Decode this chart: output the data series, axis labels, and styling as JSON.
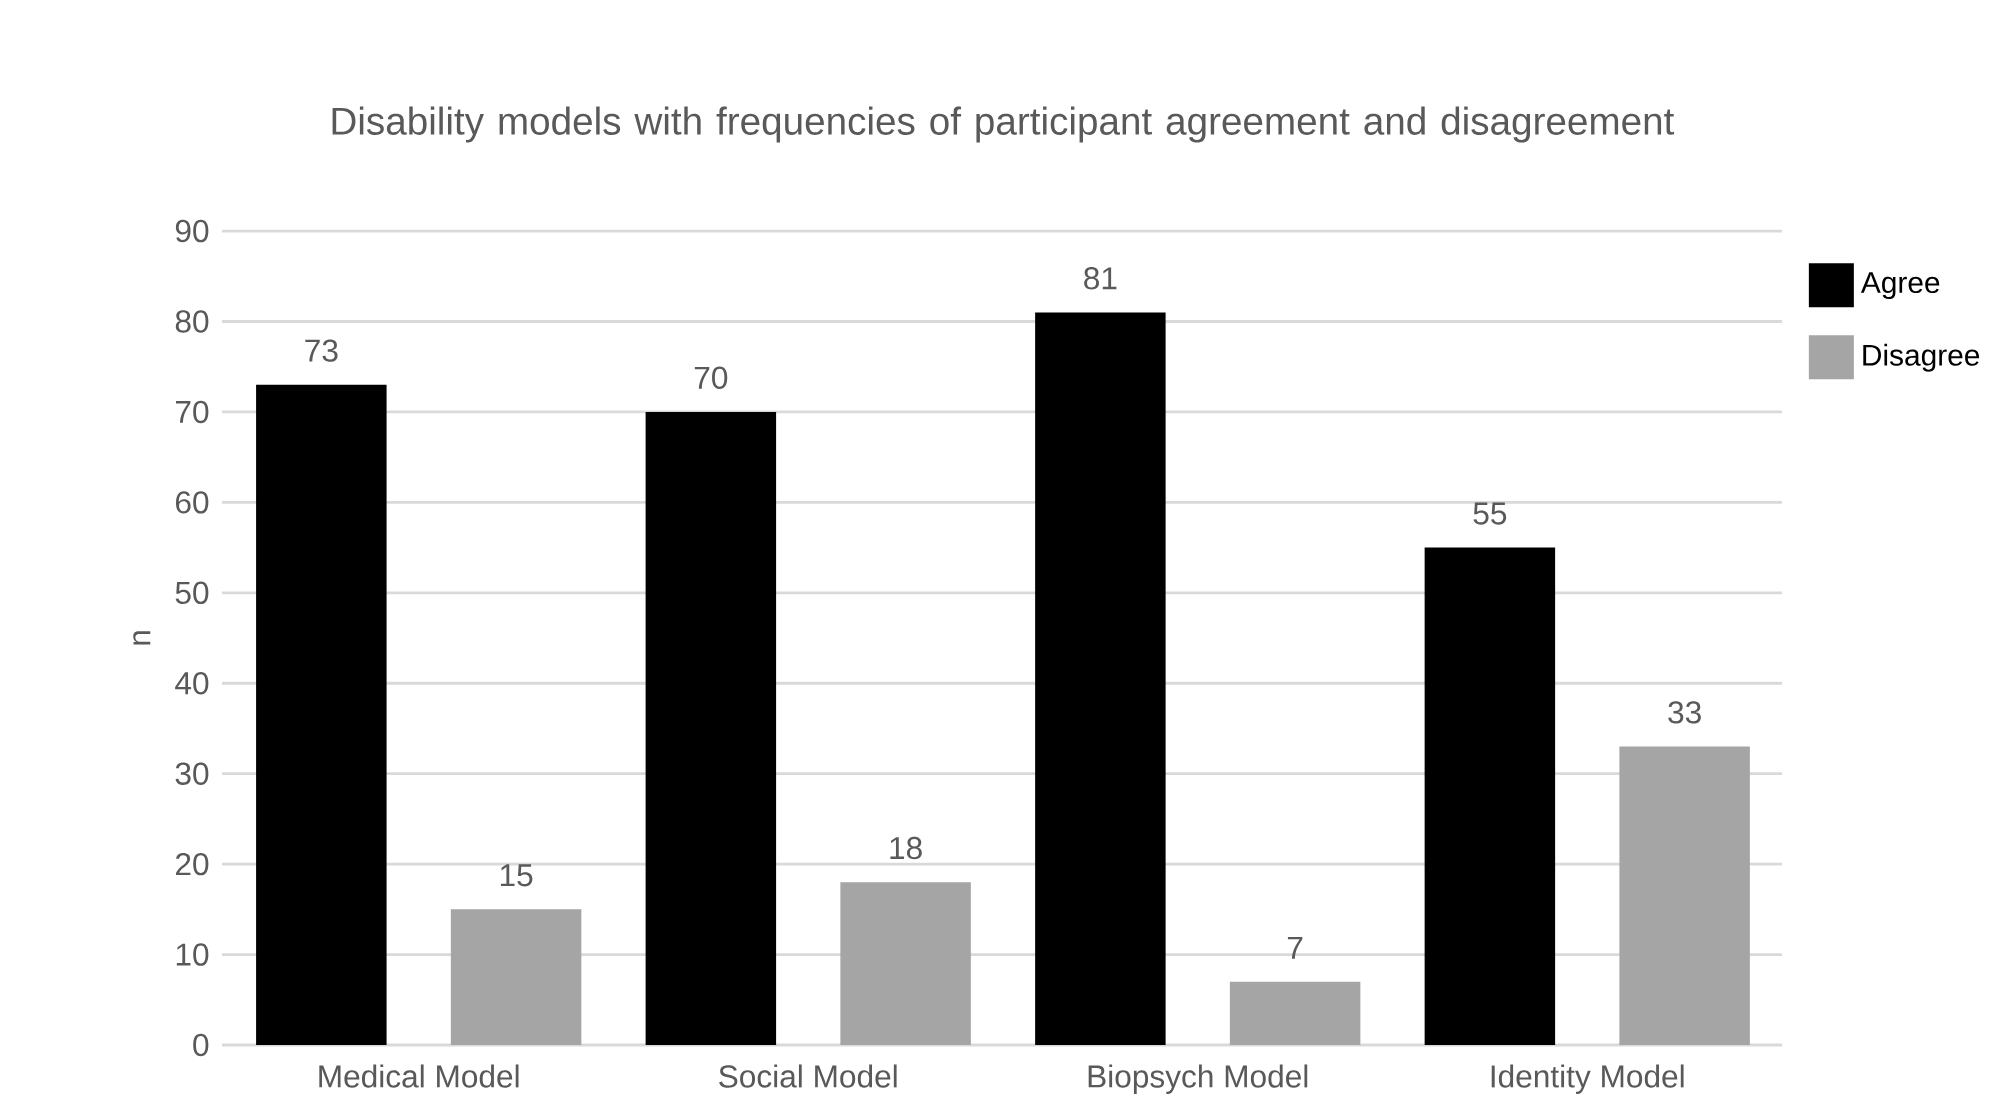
{
  "chart_data": {
    "type": "bar",
    "title": "Disability models with frequencies of participant agreement and disagreement",
    "ylabel": "n",
    "categories": [
      "Medical Model",
      "Social Model",
      "Biopsych Model",
      "Identity Model"
    ],
    "series": [
      {
        "name": "Agree",
        "color": "#000000",
        "values": [
          73,
          70,
          81,
          55
        ]
      },
      {
        "name": "Disagree",
        "color": "#a5a5a5",
        "values": [
          15,
          18,
          7,
          33
        ]
      }
    ],
    "ylim": [
      0,
      90
    ],
    "yticks": [
      0,
      10,
      20,
      30,
      40,
      50,
      60,
      70,
      80,
      90
    ],
    "grid": "y",
    "legend": "right",
    "data_labels": true
  }
}
